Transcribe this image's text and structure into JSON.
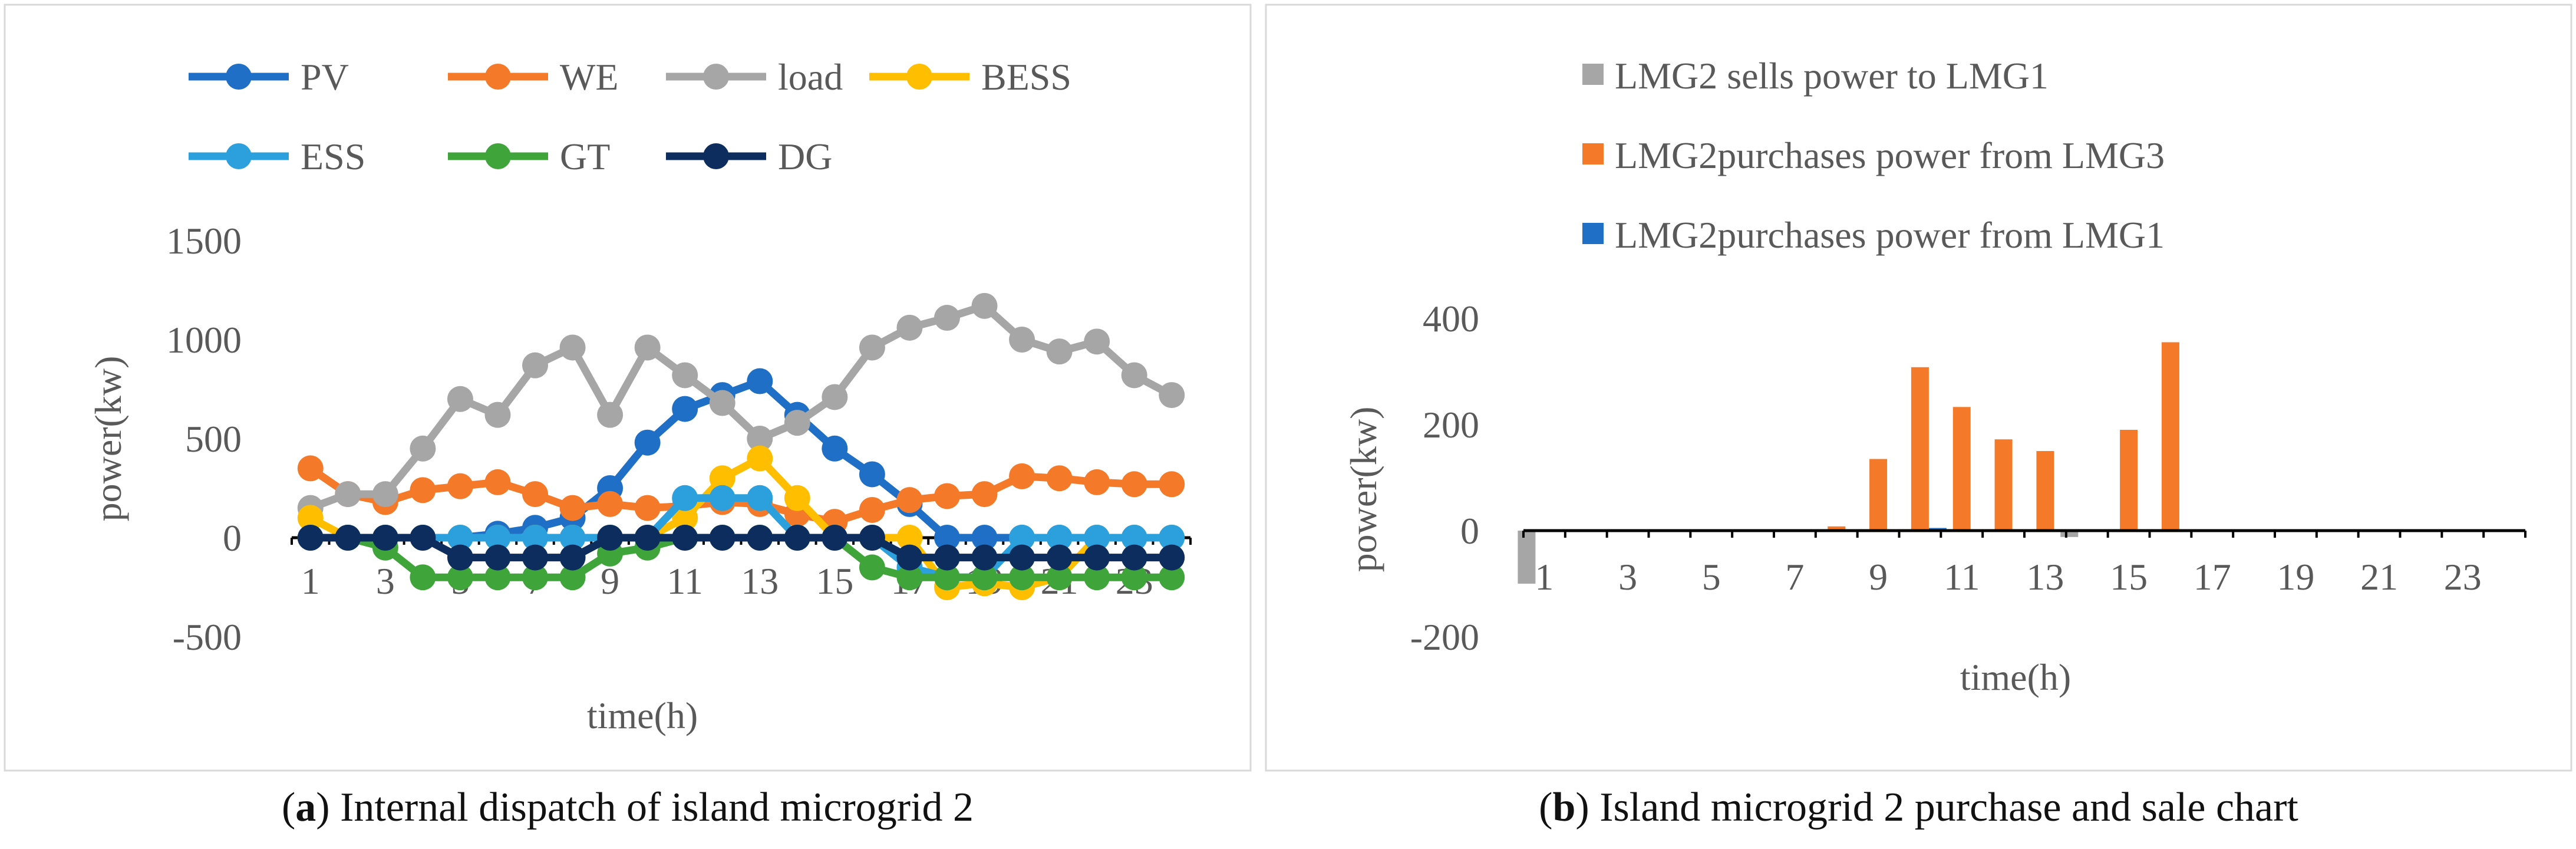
{
  "chart_data": [
    {
      "type": "line",
      "id": "a",
      "caption_letter": "a",
      "caption_text": "Internal dispatch of island microgrid 2",
      "xlabel": "time(h)",
      "ylabel": "power(kw)",
      "ylim": [
        -500,
        1500
      ],
      "yticks": [
        -500,
        0,
        500,
        1000,
        1500
      ],
      "xticks": [
        "1",
        "3",
        "5",
        "7",
        "9",
        "11",
        "13",
        "15",
        "17",
        "19",
        "21",
        "23"
      ],
      "x": [
        1,
        2,
        3,
        4,
        5,
        6,
        7,
        8,
        9,
        10,
        11,
        12,
        13,
        14,
        15,
        16,
        17,
        18,
        19,
        20,
        21,
        22,
        23,
        24
      ],
      "legend_position": "top",
      "grid": false,
      "series": [
        {
          "name": "PV",
          "color": "#1f6fc7",
          "values": [
            0,
            0,
            0,
            0,
            0,
            20,
            50,
            100,
            250,
            480,
            650,
            720,
            790,
            620,
            450,
            320,
            170,
            0,
            0,
            0,
            0,
            0,
            0,
            0
          ]
        },
        {
          "name": "WE",
          "color": "#f47a2a",
          "values": [
            350,
            220,
            180,
            240,
            260,
            280,
            220,
            150,
            170,
            150,
            160,
            180,
            170,
            120,
            80,
            140,
            190,
            210,
            220,
            310,
            300,
            280,
            270,
            270
          ]
        },
        {
          "name": "load",
          "color": "#a6a6a6",
          "values": [
            150,
            220,
            220,
            450,
            700,
            620,
            870,
            960,
            620,
            960,
            820,
            680,
            500,
            580,
            710,
            960,
            1060,
            1110,
            1170,
            1000,
            940,
            990,
            820,
            720
          ]
        },
        {
          "name": "BESS",
          "color": "#ffbf00",
          "values": [
            100,
            0,
            0,
            0,
            0,
            0,
            0,
            0,
            0,
            0,
            100,
            300,
            400,
            200,
            0,
            0,
            0,
            -250,
            -230,
            -250,
            -200,
            0,
            0,
            0
          ]
        },
        {
          "name": "ESS",
          "color": "#2ba0dc",
          "values": [
            0,
            0,
            0,
            0,
            0,
            0,
            0,
            0,
            0,
            0,
            200,
            200,
            200,
            0,
            0,
            0,
            -150,
            -200,
            -200,
            0,
            0,
            0,
            0,
            0
          ]
        },
        {
          "name": "GT",
          "color": "#3fa53a",
          "values": [
            0,
            0,
            -50,
            -200,
            -200,
            -200,
            -200,
            -200,
            -80,
            -50,
            0,
            0,
            0,
            0,
            0,
            -150,
            -200,
            -200,
            -200,
            -200,
            -200,
            -200,
            -200,
            -200
          ]
        },
        {
          "name": "DG",
          "color": "#0c2d5e",
          "values": [
            0,
            0,
            0,
            0,
            -100,
            -100,
            -100,
            -100,
            0,
            0,
            0,
            0,
            0,
            0,
            0,
            0,
            -100,
            -100,
            -100,
            -100,
            -100,
            -100,
            -100,
            -100
          ]
        }
      ]
    },
    {
      "type": "bar",
      "id": "b",
      "caption_letter": "b",
      "caption_text": "Island microgrid 2 purchase and sale chart",
      "xlabel": "time(h)",
      "ylabel": "power(kw)",
      "ylim": [
        -200,
        400
      ],
      "yticks": [
        -200,
        0,
        200,
        400
      ],
      "xticks": [
        "1",
        "3",
        "5",
        "7",
        "9",
        "11",
        "13",
        "15",
        "17",
        "19",
        "21",
        "23"
      ],
      "categories": [
        1,
        2,
        3,
        4,
        5,
        6,
        7,
        8,
        9,
        10,
        11,
        12,
        13,
        14,
        15,
        16,
        17,
        18,
        19,
        20,
        21,
        22,
        23,
        24
      ],
      "legend_position": "top",
      "grid": false,
      "series": [
        {
          "name": "LMG2 sells power to  LMG1",
          "color": "#a6a6a6",
          "values": [
            -100,
            0,
            0,
            0,
            0,
            0,
            0,
            0,
            0,
            0,
            0,
            0,
            0,
            -12,
            0,
            0,
            0,
            0,
            0,
            0,
            0,
            0,
            0,
            0
          ]
        },
        {
          "name": "LMG2purchases power from LMG3",
          "color": "#f47a2a",
          "values": [
            0,
            0,
            0,
            0,
            0,
            0,
            0,
            8,
            135,
            308,
            233,
            172,
            150,
            0,
            190,
            355,
            0,
            0,
            0,
            0,
            0,
            0,
            0,
            0
          ]
        },
        {
          "name": "LMG2purchases power from LMG1",
          "color": "#1f6fc7",
          "values": [
            0,
            0,
            0,
            0,
            0,
            0,
            0,
            0,
            0,
            5,
            0,
            0,
            0,
            0,
            0,
            0,
            0,
            0,
            0,
            0,
            0,
            0,
            0,
            0
          ]
        }
      ]
    }
  ]
}
